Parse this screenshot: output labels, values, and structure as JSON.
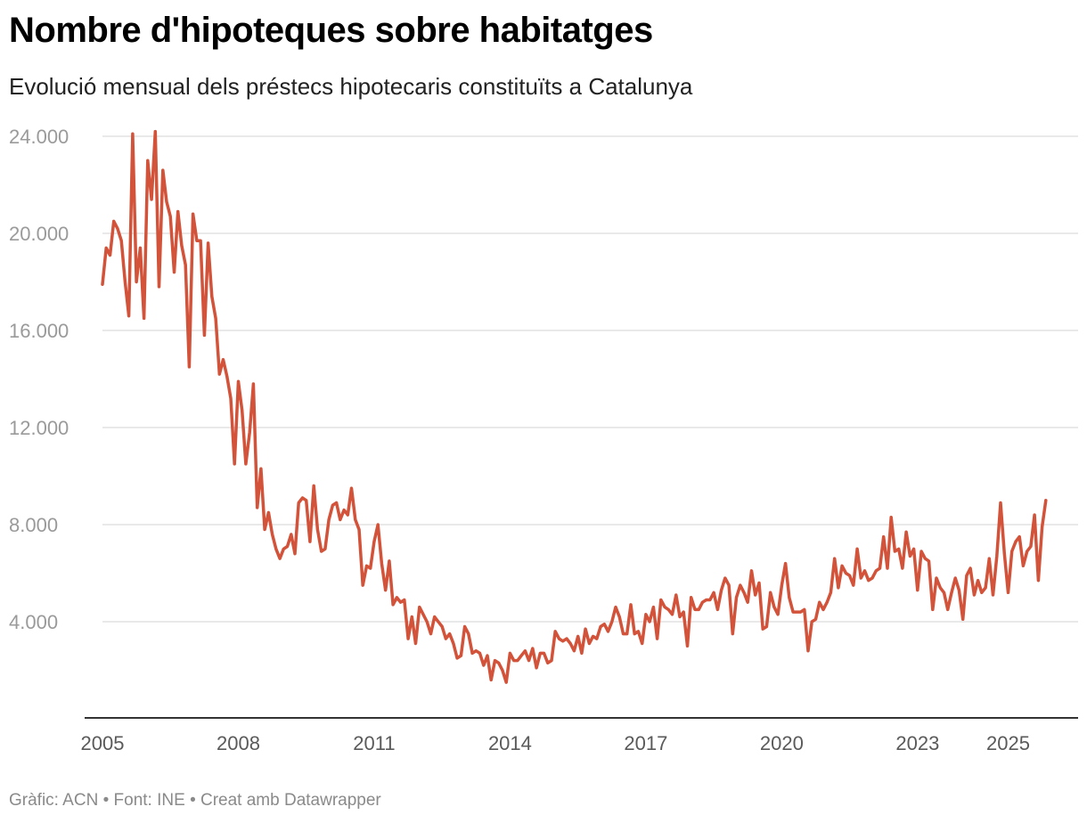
{
  "title": "Nombre d'hipoteques sobre habitatges",
  "subtitle": "Evolució mensual dels préstecs hipotecaris constituïts a Catalunya",
  "footer": {
    "chart_by": "Gràfic: ACN",
    "separator": "•",
    "source": "Font: INE",
    "made_with": "Creat amb Datawrapper"
  },
  "colors": {
    "line": "#d2533a",
    "grid": "#e2e2e2",
    "axis": "#333333"
  },
  "chart_data": {
    "type": "line",
    "title": "Nombre d'hipoteques sobre habitatges",
    "subtitle": "Evolució mensual dels préstecs hipotecaris constituïts a Catalunya",
    "xlabel": "",
    "ylabel": "",
    "x_start": "2005-01",
    "frequency": "monthly",
    "xlim": [
      2005.0,
      2025.62
    ],
    "ylim": [
      0,
      24000
    ],
    "yticks": [
      4000,
      8000,
      12000,
      16000,
      20000,
      24000
    ],
    "ytick_labels": [
      "4.000",
      "8.000",
      "12.000",
      "16.000",
      "20.000",
      "24.000"
    ],
    "xticks": [
      2005,
      2008,
      2011,
      2014,
      2017,
      2020,
      2023,
      2025
    ],
    "xtick_labels": [
      "2005",
      "2008",
      "2011",
      "2014",
      "2017",
      "2020",
      "2023",
      "2025"
    ],
    "grid": true,
    "series": [
      {
        "name": "Hipoteques sobre habitatges",
        "values": [
          17900,
          19400,
          19100,
          20500,
          20200,
          19700,
          18000,
          16600,
          24100,
          18000,
          19400,
          16500,
          23000,
          21400,
          24200,
          17800,
          22600,
          21300,
          20700,
          18400,
          20900,
          19500,
          18700,
          14500,
          20800,
          19700,
          19700,
          15800,
          19600,
          17400,
          16500,
          14200,
          14800,
          14100,
          13200,
          10500,
          13900,
          12700,
          10500,
          11800,
          13800,
          8700,
          10300,
          7800,
          8500,
          7600,
          7000,
          6600,
          7000,
          7100,
          7600,
          6800,
          8900,
          9100,
          9000,
          7300,
          9600,
          7800,
          6900,
          7000,
          8200,
          8800,
          8900,
          8200,
          8600,
          8400,
          9500,
          8200,
          7800,
          5500,
          6300,
          6200,
          7300,
          8000,
          6400,
          5300,
          6500,
          4700,
          5000,
          4800,
          4900,
          3300,
          4200,
          3100,
          4600,
          4300,
          4000,
          3500,
          4200,
          4000,
          3800,
          3300,
          3500,
          3100,
          2500,
          2600,
          3800,
          3500,
          2700,
          2800,
          2700,
          2200,
          2600,
          1600,
          2400,
          2300,
          2000,
          1500,
          2700,
          2400,
          2400,
          2600,
          2800,
          2400,
          2900,
          2100,
          2700,
          2700,
          2300,
          2400,
          3600,
          3300,
          3200,
          3300,
          3100,
          2800,
          3400,
          2700,
          3700,
          3100,
          3400,
          3300,
          3800,
          3900,
          3600,
          4000,
          4600,
          4200,
          3500,
          3500,
          4700,
          3500,
          3600,
          3100,
          4300,
          4000,
          4600,
          3300,
          4900,
          4600,
          4500,
          4300,
          5100,
          4200,
          4400,
          3000,
          5000,
          4500,
          4500,
          4800,
          4900,
          4900,
          5200,
          4500,
          5300,
          5800,
          5500,
          3500,
          5000,
          5500,
          5200,
          4800,
          6100,
          5100,
          5600,
          3700,
          3800,
          5200,
          4600,
          4300,
          5500,
          6400,
          5000,
          4400,
          4400,
          4400,
          4500,
          2800,
          4000,
          4100,
          4800,
          4500,
          4800,
          5200,
          6600,
          5400,
          6300,
          6000,
          5900,
          5500,
          7000,
          5800,
          6100,
          5700,
          5800,
          6100,
          6200,
          7500,
          6200,
          8300,
          6900,
          7000,
          6200,
          7700,
          6700,
          7000,
          5300,
          6900,
          6600,
          6500,
          4500,
          5800,
          5400,
          5200,
          4500,
          5200,
          5800,
          5300,
          4100,
          5900,
          6200,
          5100,
          5700,
          5200,
          5400,
          6600,
          5100,
          6700,
          8900,
          6800,
          5200,
          6900,
          7300,
          7500,
          6300,
          6900,
          7100,
          8400,
          5700,
          7900,
          9000
        ]
      }
    ]
  }
}
